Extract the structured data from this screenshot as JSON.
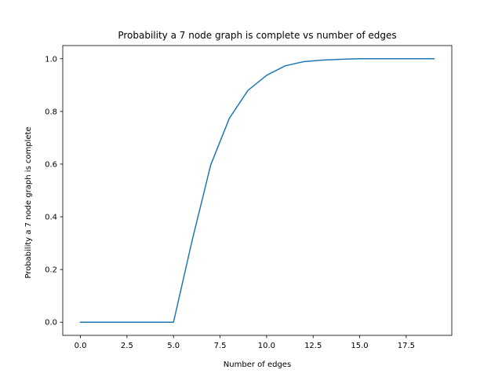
{
  "chart_data": {
    "type": "line",
    "title": "Probability a 7 node graph is complete vs number of edges",
    "xlabel": "Number of edges",
    "ylabel": "Probability a 7 node graph is complete",
    "xlim": [
      -0.95,
      19.95
    ],
    "ylim": [
      -0.05,
      1.05
    ],
    "xticks": [
      0,
      2.5,
      5,
      7.5,
      10,
      12.5,
      15,
      17.5
    ],
    "xtick_labels": [
      "0.0",
      "2.5",
      "5.0",
      "7.5",
      "10.0",
      "12.5",
      "15.0",
      "17.5"
    ],
    "yticks": [
      0,
      0.2,
      0.4,
      0.6,
      0.8,
      1.0
    ],
    "ytick_labels": [
      "0.0",
      "0.2",
      "0.4",
      "0.6",
      "0.8",
      "1.0"
    ],
    "grid": false,
    "series": [
      {
        "color": "#1f77b4",
        "x": [
          0,
          1,
          2,
          3,
          4,
          5,
          6,
          7,
          8,
          9,
          10,
          11,
          12,
          13,
          14,
          15,
          16,
          17,
          18,
          19
        ],
        "values": [
          0,
          0,
          0,
          0,
          0,
          0,
          0.31,
          0.597,
          0.774,
          0.88,
          0.937,
          0.973,
          0.989,
          0.995,
          0.998,
          1.0,
          1.0,
          1.0,
          1.0,
          1.0
        ]
      }
    ]
  }
}
